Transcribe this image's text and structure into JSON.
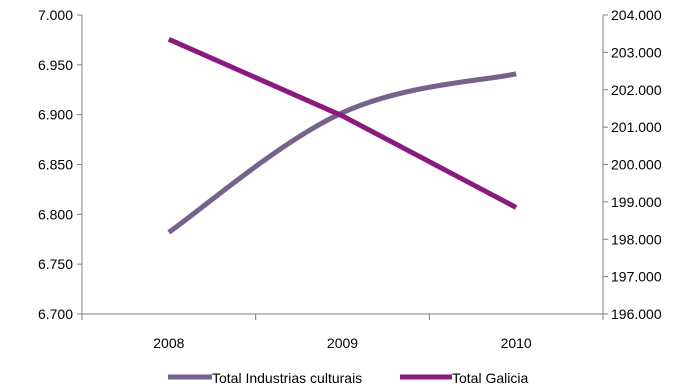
{
  "chart_data": {
    "type": "line",
    "categories": [
      "2008",
      "2009",
      "2010"
    ],
    "axes": {
      "left": {
        "min": 6700,
        "max": 7000,
        "step": 50,
        "tick_labels": [
          "6.700",
          "6.750",
          "6.800",
          "6.850",
          "6.900",
          "6.950",
          "7.000"
        ]
      },
      "right": {
        "min": 196000,
        "max": 204000,
        "step": 1000,
        "tick_labels": [
          "196.000",
          "197.000",
          "198.000",
          "199.000",
          "200.000",
          "201.000",
          "202.000",
          "203.000",
          "204.000"
        ]
      }
    },
    "series": [
      {
        "name": "Total Industrias culturais",
        "axis": "left",
        "color": "#76628a",
        "values": [
          6782,
          6902,
          6941
        ]
      },
      {
        "name": "Total Galicia",
        "axis": "right",
        "color": "#8b1a7e",
        "values": [
          203350,
          201300,
          198850
        ]
      }
    ],
    "grid": false,
    "legend": "bottom"
  }
}
